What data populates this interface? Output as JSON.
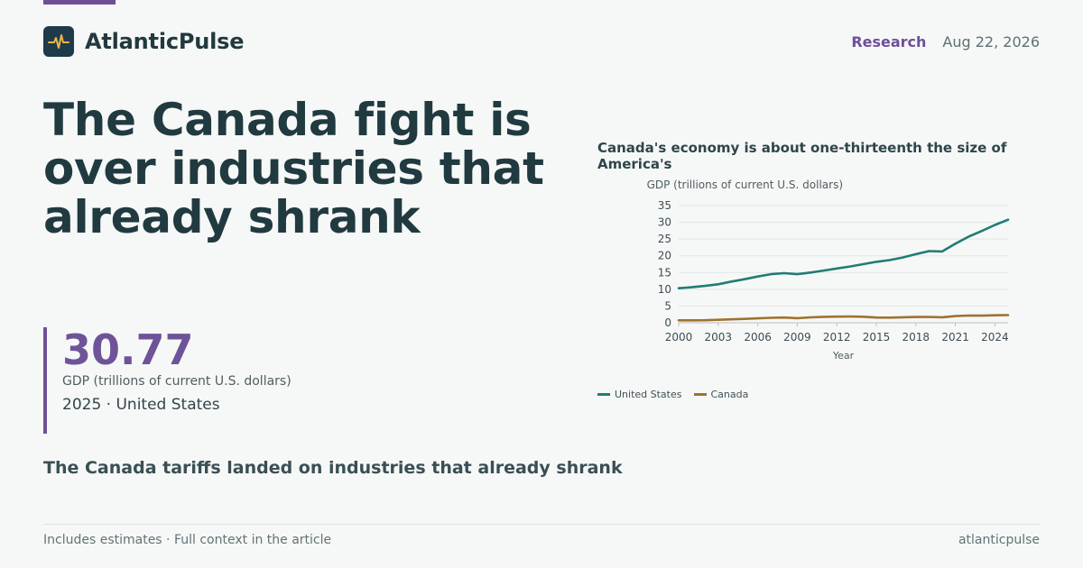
{
  "brand": {
    "name": "AtlanticPulse",
    "logo_icon": "pulse-icon"
  },
  "meta": {
    "section": "Research",
    "date": "Aug 22, 2026"
  },
  "headline": "The Canada fight is over industries that already shrank",
  "stat": {
    "value": "30.77",
    "label": "GDP (trillions of current U.S. dollars)",
    "context": "2025 · United States"
  },
  "subhead": "The Canada tariffs landed on industries that already shrank",
  "footer": {
    "note": "Includes estimates · Full context in the article",
    "handle": "atlanticpulse"
  },
  "colors": {
    "accent": "#6f4f98",
    "us": "#227c74",
    "canada": "#a0722f"
  },
  "chart_data": {
    "type": "line",
    "title": "Canada's economy is about one-thirteenth the size of America's",
    "ylabel": "GDP (trillions of current U.S. dollars)",
    "xlabel": "Year",
    "xlim": [
      2000,
      2025
    ],
    "ylim": [
      0,
      35
    ],
    "x_ticks": [
      2000,
      2003,
      2006,
      2009,
      2012,
      2015,
      2018,
      2021,
      2024
    ],
    "y_ticks": [
      0,
      5,
      10,
      15,
      20,
      25,
      30,
      35
    ],
    "grid": true,
    "legend": "bottom-left",
    "x": [
      2000,
      2001,
      2002,
      2003,
      2004,
      2005,
      2006,
      2007,
      2008,
      2009,
      2010,
      2011,
      2012,
      2013,
      2014,
      2015,
      2016,
      2017,
      2018,
      2019,
      2020,
      2021,
      2022,
      2023,
      2024,
      2025
    ],
    "series": [
      {
        "name": "United States",
        "color": "#227c74",
        "values": [
          10.3,
          10.6,
          11.0,
          11.5,
          12.3,
          13.0,
          13.8,
          14.5,
          14.8,
          14.5,
          15.0,
          15.6,
          16.2,
          16.8,
          17.5,
          18.2,
          18.7,
          19.5,
          20.5,
          21.4,
          21.3,
          23.6,
          25.7,
          27.4,
          29.2,
          30.77
        ]
      },
      {
        "name": "Canada",
        "color": "#a0722f",
        "values": [
          0.74,
          0.74,
          0.76,
          0.89,
          1.02,
          1.17,
          1.32,
          1.47,
          1.55,
          1.37,
          1.62,
          1.79,
          1.83,
          1.85,
          1.81,
          1.56,
          1.53,
          1.65,
          1.72,
          1.74,
          1.65,
          2.0,
          2.16,
          2.14,
          2.24,
          2.3
        ]
      }
    ]
  }
}
